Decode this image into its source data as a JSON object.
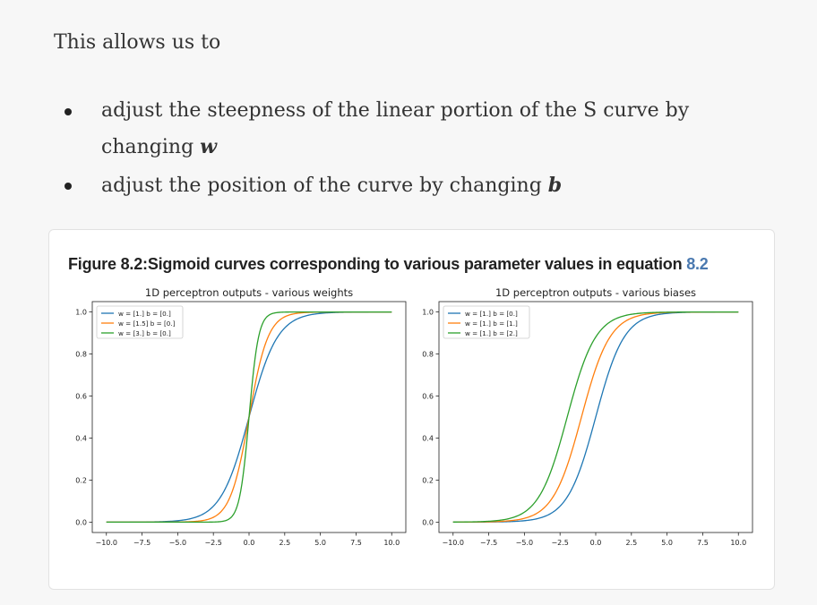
{
  "intro": "This allows us to",
  "bullets": [
    {
      "before": "adjust the steepness of the linear portion of the S curve by changing ",
      "var": "w",
      "after": ""
    },
    {
      "before": "adjust the position of the curve by changing ",
      "var": "b",
      "after": ""
    }
  ],
  "figure": {
    "caption_prefix": "Figure 8.2:Sigmoid curves corresponding to various parameter values in equation ",
    "caption_ref": "8.2"
  },
  "colors": {
    "series1": "#1f77b4",
    "series2": "#ff7f0e",
    "series3": "#2ca02c"
  },
  "chart_data": [
    {
      "type": "line",
      "title": "1D perceptron outputs - various weights",
      "xlabel": "",
      "ylabel": "",
      "xlim": [
        -10,
        10
      ],
      "ylim": [
        0,
        1
      ],
      "xticks": [
        "−10.0",
        "−7.5",
        "−5.0",
        "−2.5",
        "0.0",
        "2.5",
        "5.0",
        "7.5",
        "10.0"
      ],
      "xtick_values": [
        -10,
        -7.5,
        -5,
        -2.5,
        0,
        2.5,
        5,
        7.5,
        10
      ],
      "yticks": [
        "0.0",
        "0.2",
        "0.4",
        "0.6",
        "0.8",
        "1.0"
      ],
      "ytick_values": [
        0,
        0.2,
        0.4,
        0.6,
        0.8,
        1.0
      ],
      "grid": false,
      "legend_position": "top-left",
      "series": [
        {
          "name": "w = [1.] b = [0.]",
          "w": 1.0,
          "b": 0.0,
          "color": "#1f77b4"
        },
        {
          "name": "w = [1.5] b = [0.]",
          "w": 1.5,
          "b": 0.0,
          "color": "#ff7f0e"
        },
        {
          "name": "w = [3.] b = [0.]",
          "w": 3.0,
          "b": 0.0,
          "color": "#2ca02c"
        }
      ]
    },
    {
      "type": "line",
      "title": "1D perceptron outputs - various biases",
      "xlabel": "",
      "ylabel": "",
      "xlim": [
        -10,
        10
      ],
      "ylim": [
        0,
        1
      ],
      "xticks": [
        "−10.0",
        "−7.5",
        "−5.0",
        "−2.5",
        "0.0",
        "2.5",
        "5.0",
        "7.5",
        "10.0"
      ],
      "xtick_values": [
        -10,
        -7.5,
        -5,
        -2.5,
        0,
        2.5,
        5,
        7.5,
        10
      ],
      "yticks": [
        "0.0",
        "0.2",
        "0.4",
        "0.6",
        "0.8",
        "1.0"
      ],
      "ytick_values": [
        0,
        0.2,
        0.4,
        0.6,
        0.8,
        1.0
      ],
      "grid": false,
      "legend_position": "top-left",
      "series": [
        {
          "name": "w = [1.] b = [0.]",
          "w": 1.0,
          "b": 0.0,
          "color": "#1f77b4"
        },
        {
          "name": "w = [1.] b = [1.]",
          "w": 1.0,
          "b": 1.0,
          "color": "#ff7f0e"
        },
        {
          "name": "w = [1.] b = [2.]",
          "w": 1.0,
          "b": 2.0,
          "color": "#2ca02c"
        }
      ]
    }
  ]
}
